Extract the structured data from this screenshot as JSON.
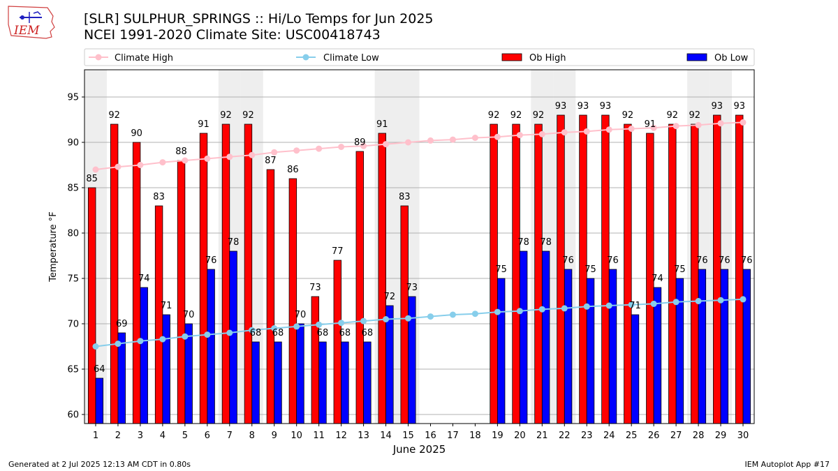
{
  "header": {
    "title_line1": "[SLR] SULPHUR_SPRINGS :: Hi/Lo Temps for Jun 2025",
    "title_line2": "NCEI 1991-2020 Climate Site: USC00418743"
  },
  "logo": {
    "text": "IEM"
  },
  "footer": {
    "left": "Generated at 2 Jul 2025 12:13 AM CDT in 0.80s",
    "right": "IEM Autoplot App #17"
  },
  "colors": {
    "ob_high": "#ff0000",
    "ob_low": "#0000ff",
    "climate_high": "#ffc0cb",
    "climate_low": "#87ceeb",
    "weekend_band": "#eeeeee",
    "grid": "#b0b0b0"
  },
  "chart_data": {
    "type": "bar",
    "title": "[SLR] SULPHUR_SPRINGS :: Hi/Lo Temps for Jun 2025",
    "xlabel": "June 2025",
    "ylabel": "Temperature °F",
    "ylim": [
      59,
      98
    ],
    "yticks": [
      60,
      65,
      70,
      75,
      80,
      85,
      90,
      95
    ],
    "grid": true,
    "legend_position": "top",
    "categories": [
      1,
      2,
      3,
      4,
      5,
      6,
      7,
      8,
      9,
      10,
      11,
      12,
      13,
      14,
      15,
      16,
      17,
      18,
      19,
      20,
      21,
      22,
      23,
      24,
      25,
      26,
      27,
      28,
      29,
      30
    ],
    "weekend_days": [
      1,
      7,
      8,
      14,
      15,
      21,
      22,
      28,
      29
    ],
    "series": [
      {
        "name": "Climate High",
        "kind": "line",
        "values": [
          87.0,
          87.3,
          87.5,
          87.8,
          88.0,
          88.2,
          88.4,
          88.6,
          88.9,
          89.1,
          89.3,
          89.5,
          89.6,
          89.8,
          90.0,
          90.2,
          90.3,
          90.5,
          90.6,
          90.8,
          90.9,
          91.1,
          91.2,
          91.4,
          91.5,
          91.6,
          91.8,
          91.9,
          92.1,
          92.2
        ]
      },
      {
        "name": "Climate Low",
        "kind": "line",
        "values": [
          67.5,
          67.8,
          68.1,
          68.3,
          68.6,
          68.8,
          69.0,
          69.3,
          69.5,
          69.7,
          69.9,
          70.1,
          70.3,
          70.5,
          70.6,
          70.8,
          71.0,
          71.1,
          71.3,
          71.4,
          71.6,
          71.7,
          71.9,
          72.0,
          72.1,
          72.2,
          72.4,
          72.5,
          72.6,
          72.7
        ]
      },
      {
        "name": "Ob High",
        "kind": "bar",
        "values": [
          85,
          92,
          90,
          83,
          88,
          91,
          92,
          92,
          87,
          86,
          73,
          77,
          89,
          91,
          83,
          null,
          null,
          null,
          92,
          92,
          92,
          93,
          93,
          93,
          92,
          91,
          92,
          92,
          93,
          93
        ]
      },
      {
        "name": "Ob Low",
        "kind": "bar",
        "values": [
          64,
          69,
          74,
          71,
          70,
          76,
          78,
          68,
          68,
          70,
          68,
          68,
          68,
          72,
          73,
          null,
          null,
          null,
          75,
          78,
          78,
          76,
          75,
          76,
          71,
          74,
          75,
          76,
          76,
          76
        ]
      }
    ]
  }
}
